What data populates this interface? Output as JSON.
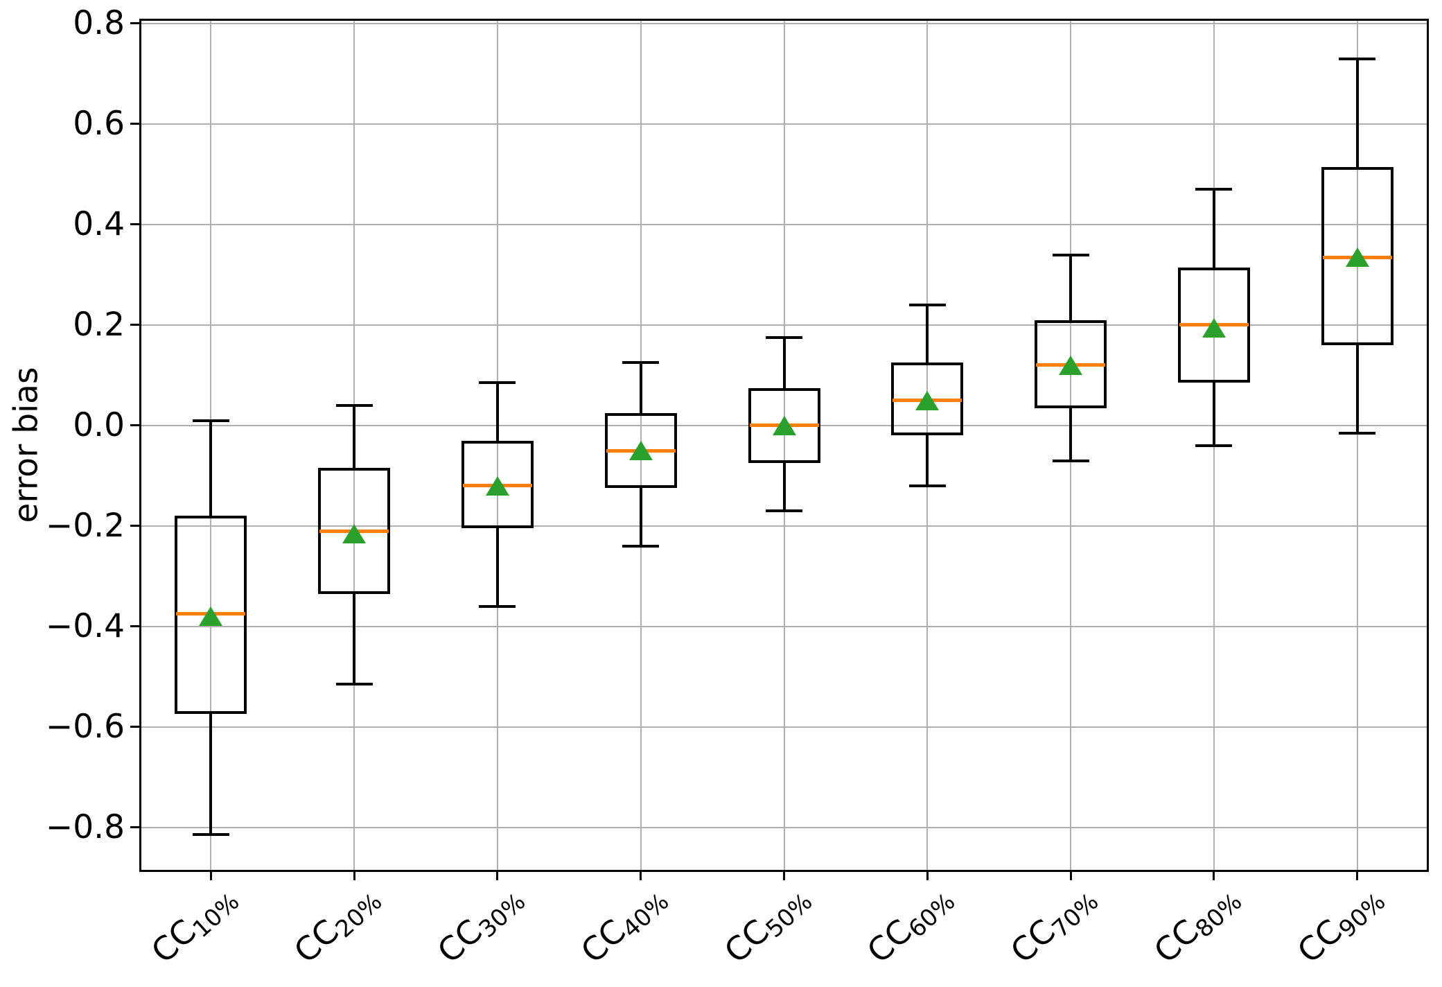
{
  "chart_data": {
    "type": "boxplot",
    "title": "",
    "xlabel": "",
    "ylabel": "error bias",
    "ylim": [
      -0.889,
      0.81
    ],
    "yticks": [
      0.8,
      0.6,
      0.4,
      0.2,
      0.0,
      -0.2,
      -0.4,
      -0.6,
      -0.8
    ],
    "ytick_labels": [
      "0.8",
      "0.6",
      "0.4",
      "0.2",
      "0.0",
      "−0.2",
      "−0.4",
      "−0.6",
      "−0.8"
    ],
    "grid": true,
    "legend": "none",
    "categories": [
      {
        "main": "CC",
        "sub": "10%"
      },
      {
        "main": "CC",
        "sub": "20%"
      },
      {
        "main": "CC",
        "sub": "30%"
      },
      {
        "main": "CC",
        "sub": "40%"
      },
      {
        "main": "CC",
        "sub": "50%"
      },
      {
        "main": "CC",
        "sub": "60%"
      },
      {
        "main": "CC",
        "sub": "70%"
      },
      {
        "main": "CC",
        "sub": "80%"
      },
      {
        "main": "CC",
        "sub": "90%"
      }
    ],
    "boxes": [
      {
        "category": "CC10%",
        "whislo": -0.815,
        "q1": -0.575,
        "med": -0.375,
        "mean": -0.38,
        "q3": -0.18,
        "whishi": 0.01
      },
      {
        "category": "CC20%",
        "whislo": -0.515,
        "q1": -0.335,
        "med": -0.21,
        "mean": -0.215,
        "q3": -0.085,
        "whishi": 0.04
      },
      {
        "category": "CC30%",
        "whislo": -0.36,
        "q1": -0.205,
        "med": -0.12,
        "mean": -0.12,
        "q3": -0.03,
        "whishi": 0.085
      },
      {
        "category": "CC40%",
        "whislo": -0.24,
        "q1": -0.125,
        "med": -0.05,
        "mean": -0.05,
        "q3": 0.025,
        "whishi": 0.125
      },
      {
        "category": "CC50%",
        "whislo": -0.17,
        "q1": -0.075,
        "med": 0.0,
        "mean": 0.0,
        "q3": 0.075,
        "whishi": 0.175
      },
      {
        "category": "CC60%",
        "whislo": -0.12,
        "q1": -0.02,
        "med": 0.05,
        "mean": 0.05,
        "q3": 0.125,
        "whishi": 0.24
      },
      {
        "category": "CC70%",
        "whislo": -0.07,
        "q1": 0.035,
        "med": 0.12,
        "mean": 0.12,
        "q3": 0.21,
        "whishi": 0.34
      },
      {
        "category": "CC80%",
        "whislo": -0.04,
        "q1": 0.085,
        "med": 0.2,
        "mean": 0.195,
        "q3": 0.315,
        "whishi": 0.47
      },
      {
        "category": "CC90%",
        "whislo": -0.015,
        "q1": 0.16,
        "med": 0.335,
        "mean": 0.335,
        "q3": 0.515,
        "whishi": 0.73
      }
    ],
    "colors": {
      "median": "#ff7f0e",
      "mean_marker": "#2ca02c",
      "box_edge": "#000000",
      "grid": "#b0b0b0",
      "background": "#ffffff"
    }
  }
}
